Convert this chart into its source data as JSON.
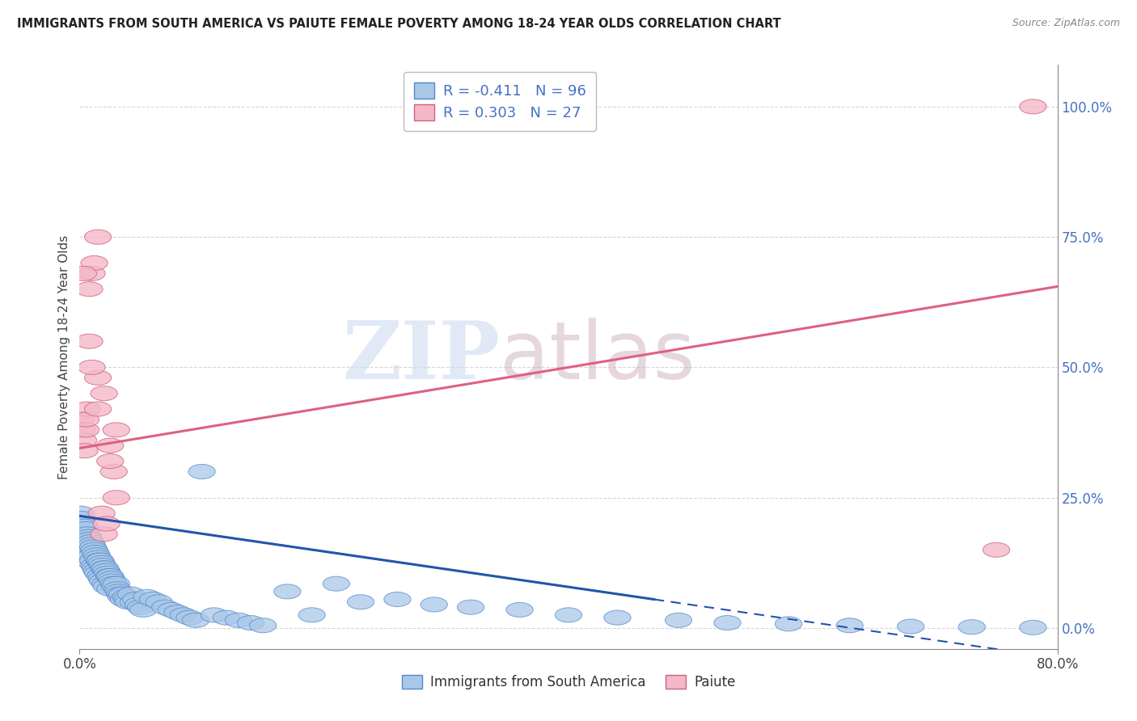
{
  "title": "IMMIGRANTS FROM SOUTH AMERICA VS PAIUTE FEMALE POVERTY AMONG 18-24 YEAR OLDS CORRELATION CHART",
  "source": "Source: ZipAtlas.com",
  "ylabel": "Female Poverty Among 18-24 Year Olds",
  "ylabel_right_ticks": [
    "100.0%",
    "75.0%",
    "50.0%",
    "25.0%",
    "0.0%"
  ],
  "ylabel_right_values": [
    1.0,
    0.75,
    0.5,
    0.25,
    0.0
  ],
  "xlim": [
    0.0,
    0.8
  ],
  "ylim": [
    -0.04,
    1.08
  ],
  "blue_R": -0.411,
  "blue_N": 96,
  "pink_R": 0.303,
  "pink_N": 27,
  "blue_color": "#a8c8e8",
  "blue_edge_color": "#5588cc",
  "pink_color": "#f4b8c8",
  "pink_edge_color": "#d06080",
  "blue_line_color": "#2255aa",
  "pink_line_color": "#e06080",
  "legend_label_blue": "Immigrants from South America",
  "legend_label_pink": "Paiute",
  "watermark_zip": "ZIP",
  "watermark_atlas": "atlas",
  "grid_color": "#cccccc",
  "title_color": "#222222",
  "right_tick_color": "#4472c4",
  "blue_trend_start_y": 0.215,
  "blue_trend_end_x": 0.47,
  "blue_trend_end_y": 0.055,
  "pink_trend_start_y": 0.345,
  "pink_trend_end_y": 0.655,
  "blue_scatter_x": [
    0.001,
    0.002,
    0.003,
    0.004,
    0.004,
    0.005,
    0.005,
    0.006,
    0.006,
    0.007,
    0.007,
    0.008,
    0.008,
    0.009,
    0.009,
    0.01,
    0.01,
    0.01,
    0.011,
    0.011,
    0.012,
    0.012,
    0.013,
    0.013,
    0.014,
    0.014,
    0.015,
    0.015,
    0.016,
    0.017,
    0.017,
    0.018,
    0.018,
    0.019,
    0.019,
    0.02,
    0.021,
    0.021,
    0.022,
    0.022,
    0.023,
    0.024,
    0.025,
    0.025,
    0.026,
    0.027,
    0.028,
    0.029,
    0.03,
    0.031,
    0.032,
    0.033,
    0.034,
    0.035,
    0.036,
    0.038,
    0.039,
    0.04,
    0.042,
    0.044,
    0.046,
    0.048,
    0.05,
    0.052,
    0.055,
    0.06,
    0.065,
    0.07,
    0.075,
    0.08,
    0.085,
    0.09,
    0.095,
    0.1,
    0.11,
    0.12,
    0.13,
    0.14,
    0.15,
    0.17,
    0.19,
    0.21,
    0.23,
    0.26,
    0.29,
    0.32,
    0.36,
    0.4,
    0.44,
    0.49,
    0.53,
    0.58,
    0.63,
    0.68,
    0.73,
    0.78
  ],
  "blue_scatter_y": [
    0.22,
    0.21,
    0.2,
    0.195,
    0.18,
    0.19,
    0.17,
    0.18,
    0.165,
    0.175,
    0.155,
    0.17,
    0.145,
    0.165,
    0.135,
    0.16,
    0.14,
    0.125,
    0.155,
    0.13,
    0.15,
    0.12,
    0.145,
    0.115,
    0.14,
    0.11,
    0.135,
    0.105,
    0.13,
    0.13,
    0.1,
    0.125,
    0.095,
    0.12,
    0.09,
    0.115,
    0.115,
    0.085,
    0.11,
    0.08,
    0.105,
    0.1,
    0.1,
    0.075,
    0.095,
    0.09,
    0.085,
    0.08,
    0.085,
    0.075,
    0.07,
    0.065,
    0.06,
    0.065,
    0.055,
    0.06,
    0.055,
    0.05,
    0.065,
    0.05,
    0.055,
    0.045,
    0.04,
    0.035,
    0.06,
    0.055,
    0.05,
    0.04,
    0.035,
    0.03,
    0.025,
    0.02,
    0.015,
    0.3,
    0.025,
    0.02,
    0.015,
    0.01,
    0.005,
    0.07,
    0.025,
    0.085,
    0.05,
    0.055,
    0.045,
    0.04,
    0.035,
    0.025,
    0.02,
    0.015,
    0.01,
    0.008,
    0.005,
    0.003,
    0.002,
    0.001
  ],
  "pink_scatter_x": [
    0.001,
    0.002,
    0.003,
    0.004,
    0.005,
    0.006,
    0.008,
    0.01,
    0.012,
    0.015,
    0.018,
    0.02,
    0.022,
    0.025,
    0.028,
    0.03,
    0.025,
    0.02,
    0.015,
    0.01,
    0.005,
    0.003,
    0.008,
    0.015,
    0.03,
    0.75,
    0.78
  ],
  "pink_scatter_y": [
    0.4,
    0.38,
    0.36,
    0.34,
    0.38,
    0.42,
    0.65,
    0.68,
    0.7,
    0.75,
    0.22,
    0.18,
    0.2,
    0.35,
    0.3,
    0.25,
    0.32,
    0.45,
    0.48,
    0.5,
    0.4,
    0.68,
    0.55,
    0.42,
    0.38,
    0.15,
    1.0
  ]
}
